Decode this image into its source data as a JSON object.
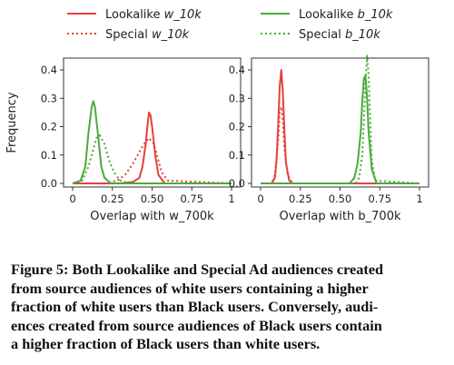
{
  "chart_data": [
    {
      "type": "line",
      "title": "",
      "xlabel": "Overlap with w_700k",
      "ylabel": "Frequency",
      "xlim": [
        0,
        1
      ],
      "ylim": [
        0,
        0.45
      ],
      "xticks": [
        "0",
        "0.25",
        "0.50",
        "0.75",
        "1"
      ],
      "yticks": [
        "0.0",
        "0.1",
        "0.2",
        "0.3",
        "0.4"
      ],
      "legend": "top",
      "series": [
        {
          "name": "Lookalike w_10k",
          "color": "#e8403a",
          "style": "solid",
          "x": [
            0,
            0.3,
            0.38,
            0.42,
            0.44,
            0.46,
            0.47,
            0.48,
            0.49,
            0.5,
            0.52,
            0.54,
            0.58,
            1
          ],
          "y": [
            0,
            0,
            0.005,
            0.02,
            0.06,
            0.14,
            0.2,
            0.25,
            0.24,
            0.2,
            0.1,
            0.03,
            0,
            0
          ]
        },
        {
          "name": "Special w_10k",
          "color": "#e8403a",
          "style": "dotted",
          "x": [
            0,
            0.2,
            0.28,
            0.33,
            0.38,
            0.42,
            0.45,
            0.48,
            0.51,
            0.53,
            0.56,
            0.6,
            1
          ],
          "y": [
            0,
            0,
            0.01,
            0.03,
            0.07,
            0.11,
            0.14,
            0.16,
            0.14,
            0.1,
            0.04,
            0.01,
            0
          ]
        },
        {
          "name": "Lookalike b_10k",
          "color": "#4aaa3a",
          "style": "solid",
          "x": [
            0,
            0.05,
            0.08,
            0.1,
            0.12,
            0.13,
            0.14,
            0.16,
            0.18,
            0.2,
            0.24,
            1
          ],
          "y": [
            0,
            0.01,
            0.06,
            0.18,
            0.27,
            0.29,
            0.27,
            0.17,
            0.06,
            0.02,
            0,
            0
          ]
        },
        {
          "name": "Special b_10k",
          "color": "#4aaa3a",
          "style": "dotted",
          "x": [
            0,
            0.06,
            0.1,
            0.13,
            0.15,
            0.17,
            0.2,
            0.23,
            0.26,
            0.3,
            0.35,
            1
          ],
          "y": [
            0,
            0.01,
            0.06,
            0.12,
            0.16,
            0.17,
            0.14,
            0.08,
            0.04,
            0.01,
            0,
            0
          ]
        }
      ]
    },
    {
      "type": "line",
      "title": "",
      "xlabel": "Overlap with b_700k",
      "ylabel": "",
      "xlim": [
        0,
        1
      ],
      "ylim": [
        0,
        0.45
      ],
      "xticks": [
        "0",
        "0.25",
        "0.50",
        "0.75",
        "1"
      ],
      "yticks": [
        "0.0",
        "0.1",
        "0.2",
        "0.3",
        "0.4"
      ],
      "legend": "top",
      "series": [
        {
          "name": "Lookalike w_10k",
          "color": "#e8403a",
          "style": "solid",
          "x": [
            0,
            0.07,
            0.09,
            0.1,
            0.11,
            0.12,
            0.13,
            0.14,
            0.15,
            0.16,
            0.18,
            0.2,
            1
          ],
          "y": [
            0,
            0,
            0.02,
            0.08,
            0.2,
            0.34,
            0.4,
            0.32,
            0.18,
            0.07,
            0.01,
            0,
            0
          ]
        },
        {
          "name": "Special w_10k",
          "color": "#e8403a",
          "style": "dotted",
          "x": [
            0,
            0.07,
            0.09,
            0.11,
            0.12,
            0.13,
            0.14,
            0.15,
            0.17,
            0.2,
            1
          ],
          "y": [
            0,
            0,
            0.03,
            0.15,
            0.25,
            0.27,
            0.22,
            0.12,
            0.03,
            0,
            0
          ]
        },
        {
          "name": "Lookalike b_10k",
          "color": "#4aaa3a",
          "style": "solid",
          "x": [
            0,
            0.56,
            0.59,
            0.61,
            0.63,
            0.64,
            0.65,
            0.66,
            0.67,
            0.68,
            0.7,
            0.73,
            1
          ],
          "y": [
            0,
            0,
            0.02,
            0.07,
            0.18,
            0.29,
            0.37,
            0.38,
            0.3,
            0.18,
            0.05,
            0,
            0
          ]
        },
        {
          "name": "Special b_10k",
          "color": "#4aaa3a",
          "style": "dotted",
          "x": [
            0,
            0.6,
            0.62,
            0.64,
            0.65,
            0.66,
            0.67,
            0.68,
            0.69,
            0.7,
            0.72,
            1
          ],
          "y": [
            0,
            0,
            0.02,
            0.1,
            0.22,
            0.36,
            0.45,
            0.38,
            0.22,
            0.08,
            0.01,
            0
          ]
        }
      ]
    }
  ],
  "caption": {
    "label": "Figure 5:",
    "lines": [
      "Both Lookalike and Special Ad audiences created",
      "from source audiences of white users containing a higher",
      "fraction of white users than Black users. Conversely, audi-",
      "ences created from source audiences of Black users contain",
      "a higher fraction of Black users than white users."
    ]
  }
}
